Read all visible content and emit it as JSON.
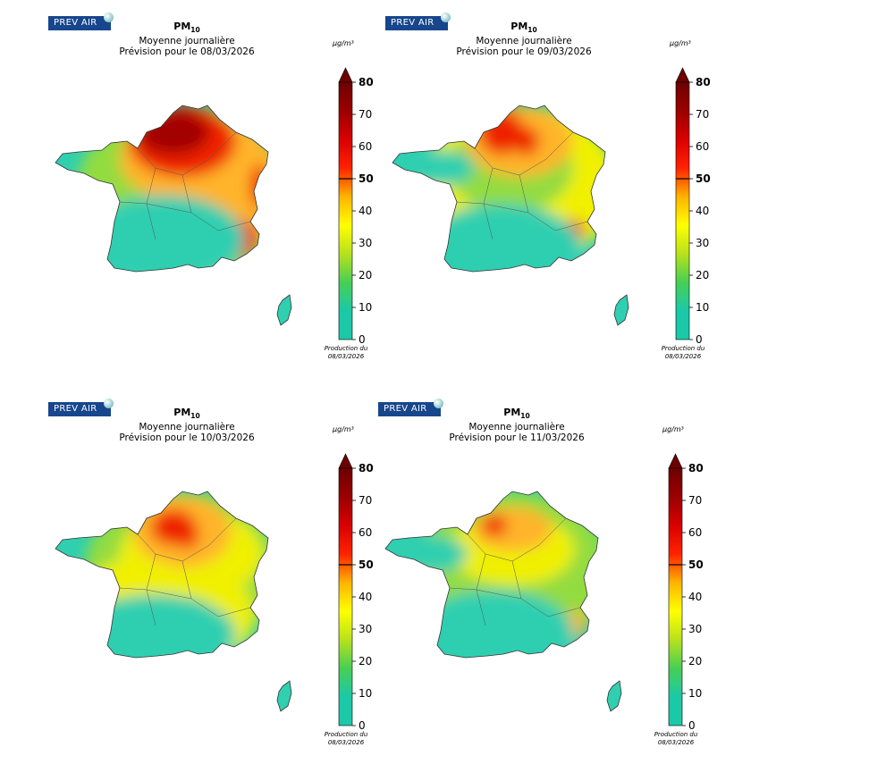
{
  "panels": [
    {
      "logo": "PREV AIR",
      "pollutant": "PM",
      "sub": "10",
      "line2": "Moyenne journalière",
      "line3": "Prévision pour le 08/03/2026",
      "unit": "µg/m³",
      "production_label": "Production du",
      "production_date": "08/03/2026"
    },
    {
      "logo": "PREV AIR",
      "pollutant": "PM",
      "sub": "10",
      "line2": "Moyenne journalière",
      "line3": "Prévision pour le 09/03/2026",
      "unit": "µg/m³",
      "production_label": "Production du",
      "production_date": "08/03/2026"
    },
    {
      "logo": "PREV AIR",
      "pollutant": "PM",
      "sub": "10",
      "line2": "Moyenne journalière",
      "line3": "Prévision pour le 10/03/2026",
      "unit": "µg/m³",
      "production_label": "Production du",
      "production_date": "08/03/2026"
    },
    {
      "logo": "PREV AIR",
      "pollutant": "PM",
      "sub": "10",
      "line2": "Moyenne journalière",
      "line3": "Prévision pour le 11/03/2026",
      "unit": "µg/m³",
      "production_label": "Production du",
      "production_date": "08/03/2026"
    }
  ],
  "colorbar": {
    "ticks": [
      "0",
      "10",
      "20",
      "30",
      "40",
      "50",
      "60",
      "70",
      "80"
    ],
    "bold_ticks": [
      "50",
      "80"
    ],
    "stops": [
      "#1bc9a8",
      "#1bc9a8",
      "#47cf55",
      "#b8e11c",
      "#ffff00",
      "#ffb300",
      "#ff2200",
      "#d90000",
      "#9b0000",
      "#6e0000"
    ]
  },
  "colors": {
    "low": "#2fcfb0",
    "lowmid": "#93dc3f",
    "mid": "#f0f000",
    "midhigh": "#ffb42a",
    "high": "#ee2200",
    "veryhigh": "#a30000",
    "logo_bg": "#17468d"
  }
}
